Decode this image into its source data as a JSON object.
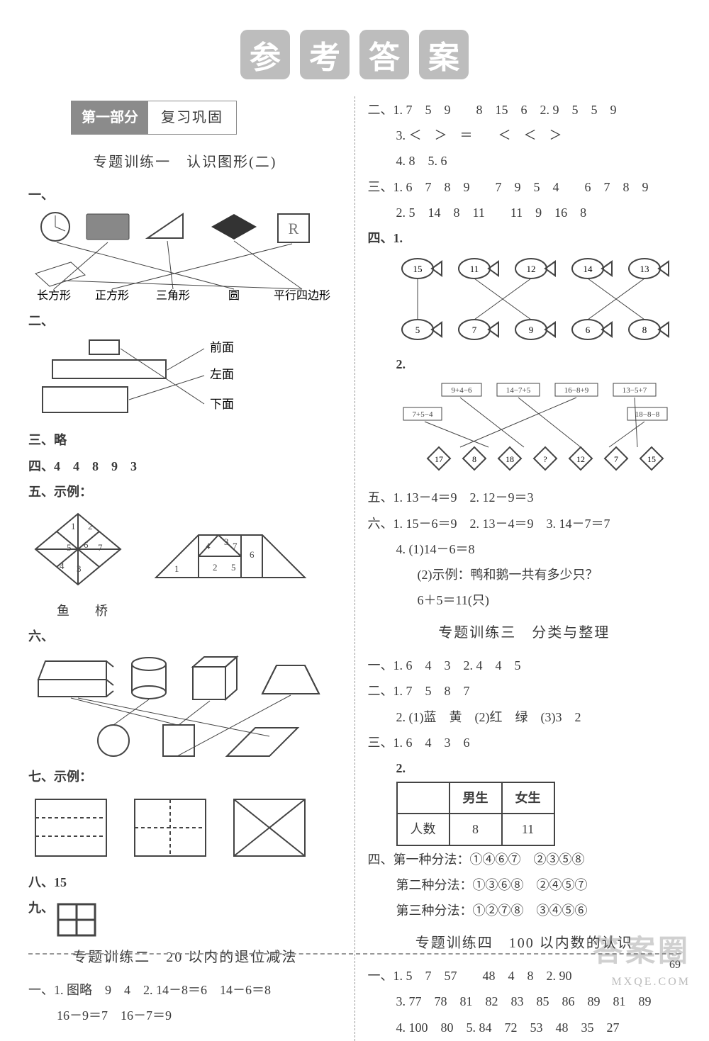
{
  "title_tiles": [
    "参",
    "考",
    "答",
    "案"
  ],
  "part_badge": {
    "dark": "第一部分",
    "light": "复习巩固"
  },
  "left": {
    "topic1": "专题训练一　认识图形(二)",
    "shape_labels": [
      "长方形",
      "正方形",
      "三角形",
      "圆",
      "平行四边形"
    ],
    "face_labels": [
      "前面",
      "左面",
      "下面"
    ],
    "s3": "三、略",
    "s4": "四、4　4　8　9　3",
    "s5_title": "五、示例：",
    "s5_labels": "鱼　　桥",
    "s6": "六、",
    "s7": "七、示例：",
    "s8": "八、15",
    "s9": "九、",
    "topic2": "专题训练二　20 以内的退位减法",
    "s_yi": "一、1. 图略　9　4　2. 14－8＝6　14－6＝8",
    "s_yi_b": "16－9＝7　16－7＝9"
  },
  "right": {
    "r1": "二、1. 7　5　9　　8　15　6　2. 9　5　5　9",
    "r1b": "3. ＜　＞　＝　　＜　＜　＞",
    "r1c": "4. 8　5. 6",
    "r2": "三、1. 6　7　8　9　　7　9　5　4　　6　7　8　9",
    "r2b": "2. 5　14　8　11　　11　9　16　8",
    "r3": "四、1.",
    "fish_top": [
      "15",
      "11",
      "12",
      "14",
      "13"
    ],
    "fish_bot": [
      "5",
      "7",
      "9",
      "6",
      "8"
    ],
    "r3_2": "2.",
    "bee_top": [
      "9+4=6",
      "14−7+5",
      "16−8+9",
      "13−5+7"
    ],
    "bee_left": "7+5−4",
    "bee_right": "18−8=8",
    "stars": [
      "17",
      "8",
      "18",
      "?",
      "12",
      "7",
      "15"
    ],
    "r5": "五、1. 13－4＝9　2. 12－9＝3",
    "r6": "六、1. 15－6＝9　2. 13－4＝9　3. 14－7＝7",
    "r6b": "4. (1)14－6＝8",
    "r6c": "(2)示例：鸭和鹅一共有多少只？",
    "r6d": "6＋5＝11(只)",
    "topic3": "专题训练三　分类与整理",
    "t3_1": "一、1. 6　4　3　2. 4　4　5",
    "t3_2": "二、1. 7　5　8　7",
    "t3_2b": "2. (1)蓝　黄　(2)红　绿　(3)3　2",
    "t3_3": "三、1. 6　4　3　6",
    "t3_3_2": "2.",
    "table": {
      "head": [
        "",
        "男生",
        "女生"
      ],
      "row": [
        "人数",
        "8",
        "11"
      ]
    },
    "t3_4a": "四、第一种分法：①④⑥⑦　②③⑤⑧",
    "t3_4b": "第二种分法：①③⑥⑧　②④⑤⑦",
    "t3_4c": "第三种分法：①②⑦⑧　③④⑤⑥",
    "topic4": "专题训练四　100 以内数的认识",
    "t4_1": "一、1. 5　7　57　　48　4　8　2. 90",
    "t4_2": "3. 77　78　81　82　83　85　86　89　81　89",
    "t4_3": "4. 100　80　5. 84　72　53　48　35　27"
  },
  "page_number": "69",
  "watermark": "答案圈",
  "watermark2": "MXQE.COM",
  "colors": {
    "tile_bg": "#bdbdbd",
    "stroke": "#444444",
    "text": "#3a3a3a"
  }
}
